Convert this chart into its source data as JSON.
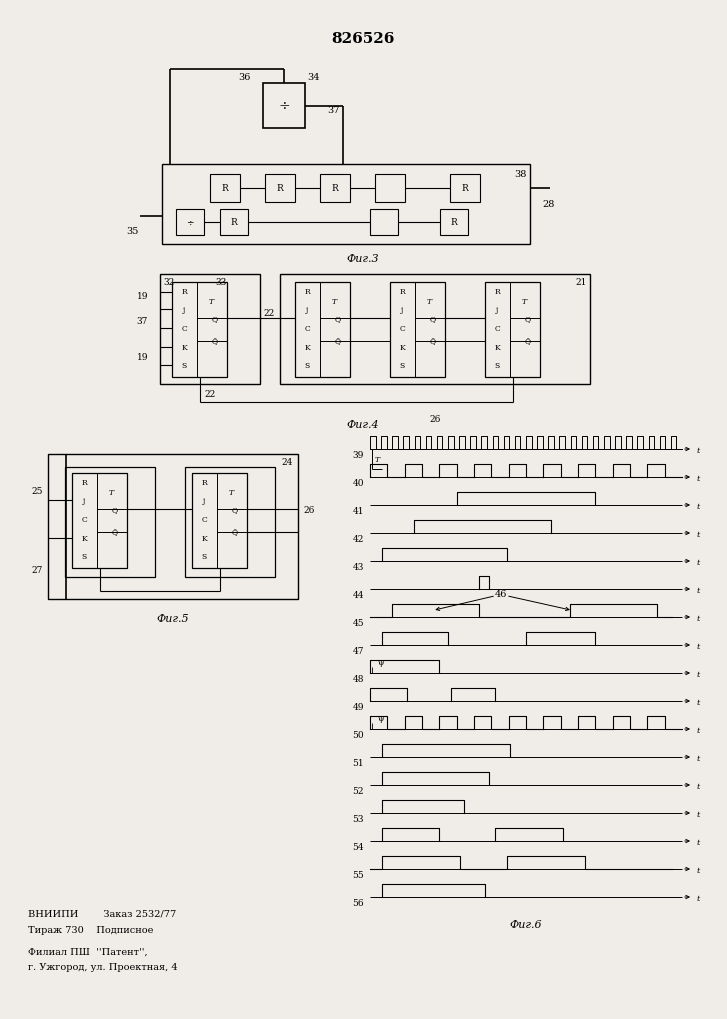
{
  "title": "826526",
  "bg_color": "#f0ede8",
  "fig3_label": "Фиг.3",
  "fig4_label": "Фиг.4",
  "fig5_label": "Фиг.5",
  "fig6_label": "Фиг.6",
  "footer_line1": "ВНИИПИ        Заказ 2532/77",
  "footer_line2": "Тираж 730    Подписное",
  "footer_line3": "Филиал ПШ  ''Патент'',",
  "footer_line4": "г. Ужгород, ул. Проектная, 4",
  "waveform_labels": [
    "39",
    "40",
    "41",
    "42",
    "43",
    "44",
    "45",
    "47",
    "48",
    "49",
    "50",
    "51",
    "52",
    "53",
    "54",
    "55",
    "56"
  ]
}
